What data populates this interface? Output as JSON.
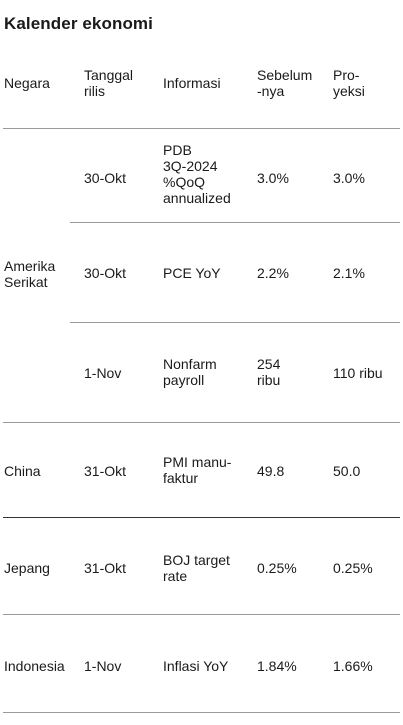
{
  "title": "Kalender ekonomi",
  "headers": {
    "negara": "Negara",
    "tanggal": "Tanggal\nrilis",
    "informasi": "Informasi",
    "sebelumnya": "Sebelum\n-nya",
    "proyeksi": "Pro-\nyeksi"
  },
  "rows": [
    {
      "negara": "",
      "tanggal": "30-Okt",
      "informasi": "PDB\n3Q-2024\n%QoQ\nannualized",
      "sebelumnya": "3.0%",
      "proyeksi": "3.0%"
    },
    {
      "negara": "Amerika\nSerikat",
      "tanggal": "30-Okt",
      "informasi": "PCE YoY",
      "sebelumnya": "2.2%",
      "proyeksi": "2.1%"
    },
    {
      "negara": "",
      "tanggal": "1-Nov",
      "informasi": "Nonfarm\npayroll",
      "sebelumnya": "254\nribu",
      "proyeksi": "110 ribu"
    },
    {
      "negara": "China",
      "tanggal": "31-Okt",
      "informasi": "PMI manu-\nfaktur",
      "sebelumnya": "49.8",
      "proyeksi": "50.0"
    },
    {
      "negara": "Jepang",
      "tanggal": "31-Okt",
      "informasi": "BOJ target\nrate",
      "sebelumnya": "0.25%",
      "proyeksi": "0.25%"
    },
    {
      "negara": "Indonesia",
      "tanggal": "1-Nov",
      "informasi": "Inflasi YoY",
      "sebelumnya": "1.84%",
      "proyeksi": "1.66%"
    }
  ]
}
